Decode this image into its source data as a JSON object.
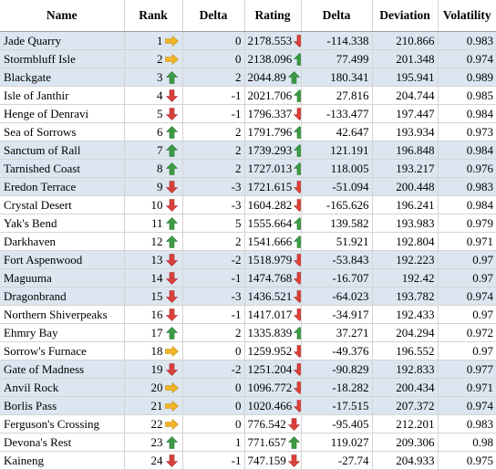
{
  "colors": {
    "up": "#3c9a44",
    "down": "#d9413a",
    "flat": "#f2b528",
    "band": "#dce6f1"
  },
  "headers": {
    "name": "Name",
    "rank": "Rank",
    "rank_delta": "Delta",
    "rating": "Rating",
    "rating_delta": "Delta",
    "deviation": "Deviation",
    "volatility": "Volatility"
  },
  "rows": [
    {
      "name": "Jade Quarry",
      "rank": "1",
      "rank_icon": "arrow-right-icon",
      "rank_delta": "0",
      "rating": "2178.553",
      "rating_icon": "arrow-down-icon",
      "rating_delta": "-114.338",
      "deviation": "210.866",
      "volatility": "0.983"
    },
    {
      "name": "Stormbluff Isle",
      "rank": "2",
      "rank_icon": "arrow-right-icon",
      "rank_delta": "0",
      "rating": "2138.096",
      "rating_icon": "arrow-up-icon",
      "rating_delta": "77.499",
      "deviation": "201.348",
      "volatility": "0.974"
    },
    {
      "name": "Blackgate",
      "rank": "3",
      "rank_icon": "arrow-up-icon",
      "rank_delta": "2",
      "rating": "2044.89",
      "rating_icon": "arrow-up-icon",
      "rating_delta": "180.341",
      "deviation": "195.941",
      "volatility": "0.989"
    },
    {
      "name": "Isle of Janthir",
      "rank": "4",
      "rank_icon": "arrow-down-icon",
      "rank_delta": "-1",
      "rating": "2021.706",
      "rating_icon": "arrow-up-icon",
      "rating_delta": "27.816",
      "deviation": "204.744",
      "volatility": "0.985"
    },
    {
      "name": "Henge of Denravi",
      "rank": "5",
      "rank_icon": "arrow-down-icon",
      "rank_delta": "-1",
      "rating": "1796.337",
      "rating_icon": "arrow-down-icon",
      "rating_delta": "-133.477",
      "deviation": "197.447",
      "volatility": "0.984"
    },
    {
      "name": "Sea of Sorrows",
      "rank": "6",
      "rank_icon": "arrow-up-icon",
      "rank_delta": "2",
      "rating": "1791.796",
      "rating_icon": "arrow-up-icon",
      "rating_delta": "42.647",
      "deviation": "193.934",
      "volatility": "0.973"
    },
    {
      "name": "Sanctum of Rall",
      "rank": "7",
      "rank_icon": "arrow-up-icon",
      "rank_delta": "2",
      "rating": "1739.293",
      "rating_icon": "arrow-up-icon",
      "rating_delta": "121.191",
      "deviation": "196.848",
      "volatility": "0.984"
    },
    {
      "name": "Tarnished Coast",
      "rank": "8",
      "rank_icon": "arrow-up-icon",
      "rank_delta": "2",
      "rating": "1727.013",
      "rating_icon": "arrow-up-icon",
      "rating_delta": "118.005",
      "deviation": "193.217",
      "volatility": "0.976"
    },
    {
      "name": "Eredon Terrace",
      "rank": "9",
      "rank_icon": "arrow-down-icon",
      "rank_delta": "-3",
      "rating": "1721.615",
      "rating_icon": "arrow-down-icon",
      "rating_delta": "-51.094",
      "deviation": "200.448",
      "volatility": "0.983"
    },
    {
      "name": "Crystal Desert",
      "rank": "10",
      "rank_icon": "arrow-down-icon",
      "rank_delta": "-3",
      "rating": "1604.282",
      "rating_icon": "arrow-down-icon",
      "rating_delta": "-165.626",
      "deviation": "196.241",
      "volatility": "0.984"
    },
    {
      "name": "Yak's Bend",
      "rank": "11",
      "rank_icon": "arrow-up-icon",
      "rank_delta": "5",
      "rating": "1555.664",
      "rating_icon": "arrow-up-icon",
      "rating_delta": "139.582",
      "deviation": "193.983",
      "volatility": "0.979"
    },
    {
      "name": "Darkhaven",
      "rank": "12",
      "rank_icon": "arrow-up-icon",
      "rank_delta": "2",
      "rating": "1541.666",
      "rating_icon": "arrow-up-icon",
      "rating_delta": "51.921",
      "deviation": "192.804",
      "volatility": "0.971"
    },
    {
      "name": "Fort Aspenwood",
      "rank": "13",
      "rank_icon": "arrow-down-icon",
      "rank_delta": "-2",
      "rating": "1518.979",
      "rating_icon": "arrow-down-icon",
      "rating_delta": "-53.843",
      "deviation": "192.223",
      "volatility": "0.97"
    },
    {
      "name": "Maguuma",
      "rank": "14",
      "rank_icon": "arrow-down-icon",
      "rank_delta": "-1",
      "rating": "1474.768",
      "rating_icon": "arrow-down-icon",
      "rating_delta": "-16.707",
      "deviation": "192.42",
      "volatility": "0.97"
    },
    {
      "name": "Dragonbrand",
      "rank": "15",
      "rank_icon": "arrow-down-icon",
      "rank_delta": "-3",
      "rating": "1436.521",
      "rating_icon": "arrow-down-icon",
      "rating_delta": "-64.023",
      "deviation": "193.782",
      "volatility": "0.974"
    },
    {
      "name": "Northern Shiverpeaks",
      "rank": "16",
      "rank_icon": "arrow-down-icon",
      "rank_delta": "-1",
      "rating": "1417.017",
      "rating_icon": "arrow-down-icon",
      "rating_delta": "-34.917",
      "deviation": "192.433",
      "volatility": "0.97"
    },
    {
      "name": "Ehmry Bay",
      "rank": "17",
      "rank_icon": "arrow-up-icon",
      "rank_delta": "2",
      "rating": "1335.839",
      "rating_icon": "arrow-up-icon",
      "rating_delta": "37.271",
      "deviation": "204.294",
      "volatility": "0.972"
    },
    {
      "name": "Sorrow's Furnace",
      "rank": "18",
      "rank_icon": "arrow-right-icon",
      "rank_delta": "0",
      "rating": "1259.952",
      "rating_icon": "arrow-down-icon",
      "rating_delta": "-49.376",
      "deviation": "196.552",
      "volatility": "0.97"
    },
    {
      "name": "Gate of Madness",
      "rank": "19",
      "rank_icon": "arrow-down-icon",
      "rank_delta": "-2",
      "rating": "1251.204",
      "rating_icon": "arrow-down-icon",
      "rating_delta": "-90.829",
      "deviation": "192.833",
      "volatility": "0.977"
    },
    {
      "name": "Anvil Rock",
      "rank": "20",
      "rank_icon": "arrow-right-icon",
      "rank_delta": "0",
      "rating": "1096.772",
      "rating_icon": "arrow-down-icon",
      "rating_delta": "-18.282",
      "deviation": "200.434",
      "volatility": "0.971"
    },
    {
      "name": "Borlis Pass",
      "rank": "21",
      "rank_icon": "arrow-right-icon",
      "rank_delta": "0",
      "rating": "1020.466",
      "rating_icon": "arrow-down-icon",
      "rating_delta": "-17.515",
      "deviation": "207.372",
      "volatility": "0.974"
    },
    {
      "name": "Ferguson's Crossing",
      "rank": "22",
      "rank_icon": "arrow-right-icon",
      "rank_delta": "0",
      "rating": "776.542",
      "rating_icon": "arrow-down-icon",
      "rating_delta": "-95.405",
      "deviation": "212.201",
      "volatility": "0.983"
    },
    {
      "name": "Devona's Rest",
      "rank": "23",
      "rank_icon": "arrow-up-icon",
      "rank_delta": "1",
      "rating": "771.657",
      "rating_icon": "arrow-up-icon",
      "rating_delta": "119.027",
      "deviation": "209.306",
      "volatility": "0.98"
    },
    {
      "name": "Kaineng",
      "rank": "24",
      "rank_icon": "arrow-down-icon",
      "rank_delta": "-1",
      "rating": "747.159",
      "rating_icon": "arrow-down-icon",
      "rating_delta": "-27.74",
      "deviation": "204.933",
      "volatility": "0.975"
    }
  ]
}
